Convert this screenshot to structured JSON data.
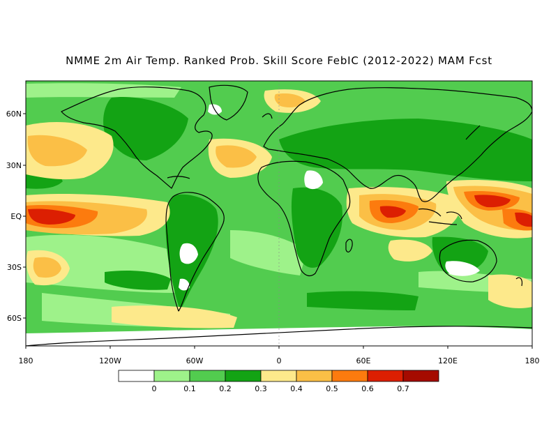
{
  "title": "NMME 2m Air Temp. Ranked Prob. Skill Score FebIC (2012-2022) MAM Fcst",
  "axes": {
    "lat_ticks": [
      "60N",
      "30N",
      "EQ",
      "30S",
      "60S"
    ],
    "lon_ticks": [
      "180",
      "120W",
      "60W",
      "0",
      "60E",
      "120E",
      "180"
    ]
  },
  "legend": {
    "colors": [
      "#ffffff",
      "#9ef28a",
      "#52cc4f",
      "#13a314",
      "#fde98b",
      "#fbbf46",
      "#fc7b0e",
      "#dc1f02",
      "#a50b00"
    ],
    "labels": [
      "0",
      "0.1",
      "0.2",
      "0.3",
      "0.4",
      "0.5",
      "0.6",
      "0.7"
    ]
  },
  "map_colors": {
    "ocean_base": "#52cc4f",
    "land_base": "#13a314",
    "coast": "#000000"
  }
}
